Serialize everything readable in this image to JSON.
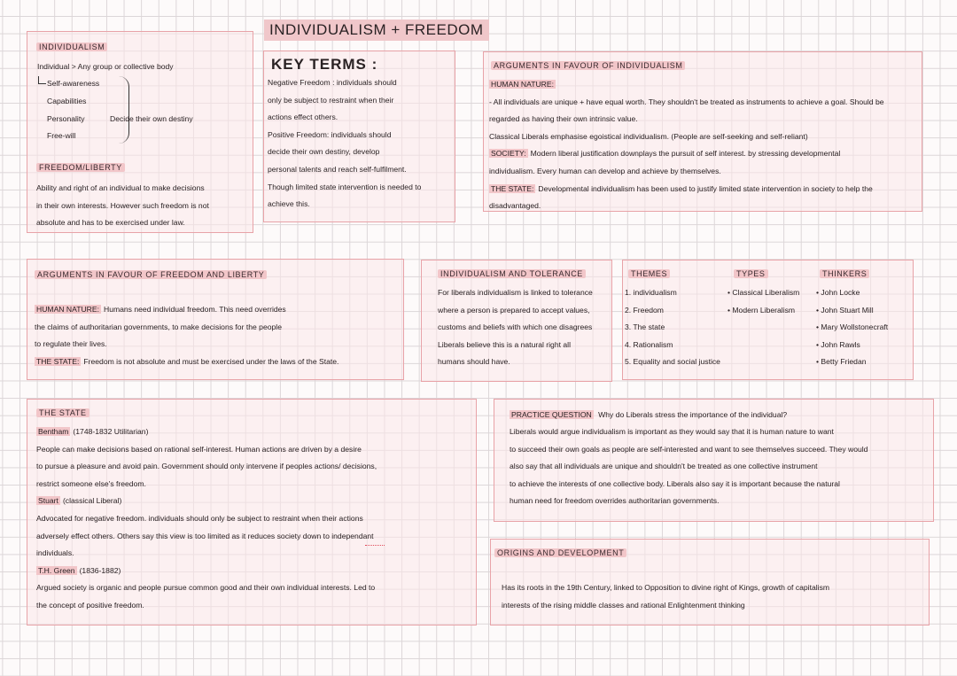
{
  "title": "INDIVIDUALISM + FREEDOM",
  "individualism": {
    "heading": "INDIVIDUALISM",
    "definition": "Individual > Any group or collective body",
    "traits": [
      "Self-awareness",
      "Capabilities",
      "Personality",
      "Free-will"
    ],
    "brace_note": "Decide their own destiny",
    "freedom_heading": "FREEDOM/LIBERTY",
    "freedom_lines": [
      "Ability and right of an individual to make decisions",
      "in their own interests. However such freedom is not",
      "absolute and has to be exercised under law."
    ]
  },
  "key_terms": {
    "heading": "KEY TERMS :",
    "lines": [
      " Negative Freedom : individuals should",
      "only be subject to restraint when their",
      "actions effect others.",
      "Positive Freedom: individuals should",
      "decide their own destiny, develop",
      "personal talents and reach self-fulfilment.",
      "Though limited state intervention is needed to",
      "achieve this."
    ]
  },
  "args_individualism": {
    "heading": "ARGUMENTS IN FAVOUR OF INDIVIDUALISM",
    "lines": [
      {
        "label": "HUMAN NATURE:",
        "text": ""
      },
      {
        "text": "- All individuals are unique + have equal worth. They shouldn't be treated as instruments to achieve a goal. Should be"
      },
      {
        "text": "regarded as having their own intrinsic value."
      },
      {
        "text": "Classical Liberals emphasise egoistical individualism. (People are self-seeking and self-reliant)"
      },
      {
        "label": "SOCIETY:",
        "text": "Modern liberal justification downplays the pursuit of self interest. by stressing developmental"
      },
      {
        "text": "individualism. Every human can develop and achieve by themselves."
      },
      {
        "label": "THE STATE:",
        "text": "Developmental individualism has been used to justify limited state intervention in society to help the"
      },
      {
        "text": "disadvantaged."
      }
    ]
  },
  "args_freedom": {
    "heading": "ARGUMENTS IN FAVOUR OF FREEDOM AND LIBERTY",
    "lines": [
      {
        "label": "HUMAN NATURE:",
        "text": "Humans need individual freedom. This need overrides"
      },
      {
        "text": "the claims of authoritarian governments, to make decisions for the people"
      },
      {
        "text": "to regulate their lives."
      },
      {
        "label": "THE STATE:",
        "text": "Freedom is not absolute and must be exercised under the laws of the State."
      }
    ]
  },
  "tolerance": {
    "heading": "INDIVIDUALISM AND TOLERANCE",
    "lines": [
      "For liberals individualism is linked to tolerance",
      "where a person is prepared to accept values,",
      "customs and beliefs with which one disagrees",
      "Liberals believe this is a natural right all",
      "humans should have."
    ]
  },
  "themes": {
    "heading": "THEMES",
    "items": [
      "1. individualism",
      "2. Freedom",
      "3. The state",
      "4. Rationalism",
      "5. Equality and social justice"
    ]
  },
  "types": {
    "heading": "TYPES",
    "items": [
      "• Classical Liberalism",
      "• Modern Liberalism"
    ]
  },
  "thinkers": {
    "heading": "THINKERS",
    "items": [
      "• John Locke",
      "• John Stuart Mill",
      "• Mary Wollstonecraft",
      "• John Rawls",
      "• Betty Friedan"
    ]
  },
  "the_state": {
    "heading": "THE STATE",
    "lines": [
      {
        "label": "Bentham",
        "text": "(1748-1832 Utilitarian)"
      },
      {
        "text": "People can make decisions based on rational self-interest. Human actions are driven by a desire"
      },
      {
        "text": "to pursue a pleasure and avoid pain. Government should only intervene if peoples actions/ decisions,"
      },
      {
        "text": "restrict someone else's freedom."
      },
      {
        "label": "Stuart",
        "text": "(classical Liberal)"
      },
      {
        "text": "Advocated for negative freedom. individuals should only be subject to restraint when their actions"
      },
      {
        "text": "adversely effect others. Others say this view is too limited as it reduces society down to independant"
      },
      {
        "text": "individuals."
      },
      {
        "label": "T.H. Green",
        "text": "(1836-1882)"
      },
      {
        "text": "Argued society is organic and people pursue common good and their own individual interests. Led to"
      },
      {
        "text": "the concept of positive freedom."
      }
    ]
  },
  "practice": {
    "label": "PRACTICE QUESTION",
    "question": "Why do Liberals stress the importance of the individual?",
    "lines": [
      "Liberals would argue individualism is important as they would say that it is human nature to want",
      "to succeed their own goals as people are self-interested and want to see themselves succeed. They would",
      "also say that all individuals are unique and shouldn't be treated as one collective instrument",
      "to achieve the interests of one collective body. Liberals also say it is important because the natural",
      "human need for freedom overrides authoritarian governments."
    ]
  },
  "origins": {
    "heading": "ORIGINS AND DEVELOPMENT",
    "lines": [
      "Has its roots in the 19th Century, linked to Opposition to divine right of Kings, growth of capitalism",
      "interests of the rising middle classes and rational Enlightenment thinking"
    ]
  },
  "colors": {
    "box_border": "#e8a3a8",
    "highlight": "#f2c6c9",
    "grid": "#dcd6d8"
  }
}
